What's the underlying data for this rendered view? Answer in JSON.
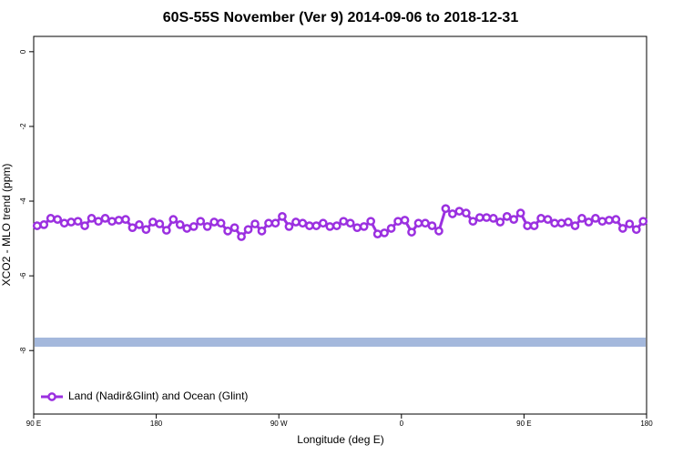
{
  "chart_data": {
    "type": "line",
    "title": "60S-55S November (Ver 9)   2014-09-06 to 2018-12-31",
    "x_label": "Longitude (deg E)",
    "y_label": "XCO2 - MLO trend (ppm)",
    "xlim": [
      90,
      540
    ],
    "xticks": [
      {
        "value": 90,
        "label": "90 E"
      },
      180,
      {
        "value": 270,
        "label": "90 W"
      },
      {
        "value": 360,
        "label": "0"
      },
      {
        "value": 450,
        "label": "90 E"
      },
      {
        "value": 540,
        "label": "180"
      }
    ],
    "ylim": [
      -9.7,
      0.41
    ],
    "yticks": [
      0,
      -2,
      -4,
      -6,
      -8
    ],
    "legend": "bottom-left",
    "x": [
      92.5,
      97.5,
      102.5,
      107.5,
      112.5,
      117.5,
      122.5,
      127.5,
      132.5,
      137.5,
      142.5,
      147.5,
      152.5,
      157.5,
      162.5,
      167.5,
      172.5,
      177.5,
      182.5,
      187.5,
      192.5,
      197.5,
      202.5,
      207.5,
      212.5,
      217.5,
      222.5,
      227.5,
      232.5,
      237.5,
      242.5,
      247.5,
      252.5,
      257.5,
      262.5,
      267.5,
      272.5,
      277.5,
      282.5,
      287.5,
      292.5,
      297.5,
      302.5,
      307.5,
      312.5,
      317.5,
      322.5,
      327.5,
      332.5,
      337.5,
      342.5,
      347.5,
      352.5,
      357.5,
      362.5,
      367.5,
      372.5,
      377.5,
      382.5,
      387.5,
      392.5,
      397.5,
      402.5,
      407.5,
      412.5,
      417.5,
      422.5,
      427.5,
      432.5,
      437.5,
      442.5,
      447.5,
      452.5,
      457.5,
      462.5,
      467.5,
      472.5,
      477.5,
      482.5,
      487.5,
      492.5,
      497.5,
      502.5,
      507.5,
      512.5,
      517.5,
      522.5,
      527.5,
      532.5,
      537.5
    ],
    "series": [
      {
        "name": "Land (Nadir&Glint) and Ocean (Glint)",
        "color": "#9b30e0",
        "values": [
          -4.66,
          -4.63,
          -4.46,
          -4.49,
          -4.59,
          -4.56,
          -4.54,
          -4.66,
          -4.46,
          -4.54,
          -4.46,
          -4.54,
          -4.51,
          -4.49,
          -4.71,
          -4.63,
          -4.76,
          -4.56,
          -4.61,
          -4.78,
          -4.49,
          -4.63,
          -4.73,
          -4.68,
          -4.54,
          -4.68,
          -4.56,
          -4.59,
          -4.8,
          -4.71,
          -4.95,
          -4.76,
          -4.61,
          -4.8,
          -4.59,
          -4.59,
          -4.41,
          -4.68,
          -4.56,
          -4.59,
          -4.66,
          -4.66,
          -4.59,
          -4.68,
          -4.66,
          -4.54,
          -4.59,
          -4.71,
          -4.68,
          -4.54,
          -4.88,
          -4.85,
          -4.73,
          -4.54,
          -4.51,
          -4.83,
          -4.59,
          -4.59,
          -4.66,
          -4.8,
          -4.2,
          -4.34,
          -4.27,
          -4.32,
          -4.54,
          -4.44,
          -4.44,
          -4.46,
          -4.56,
          -4.41,
          -4.49,
          -4.32,
          -4.66,
          -4.66,
          -4.46,
          -4.49,
          -4.59,
          -4.59,
          -4.56,
          -4.66,
          -4.46,
          -4.56,
          -4.46,
          -4.54,
          -4.51,
          -4.49,
          -4.73,
          -4.61,
          -4.76,
          -4.54
        ]
      }
    ]
  }
}
